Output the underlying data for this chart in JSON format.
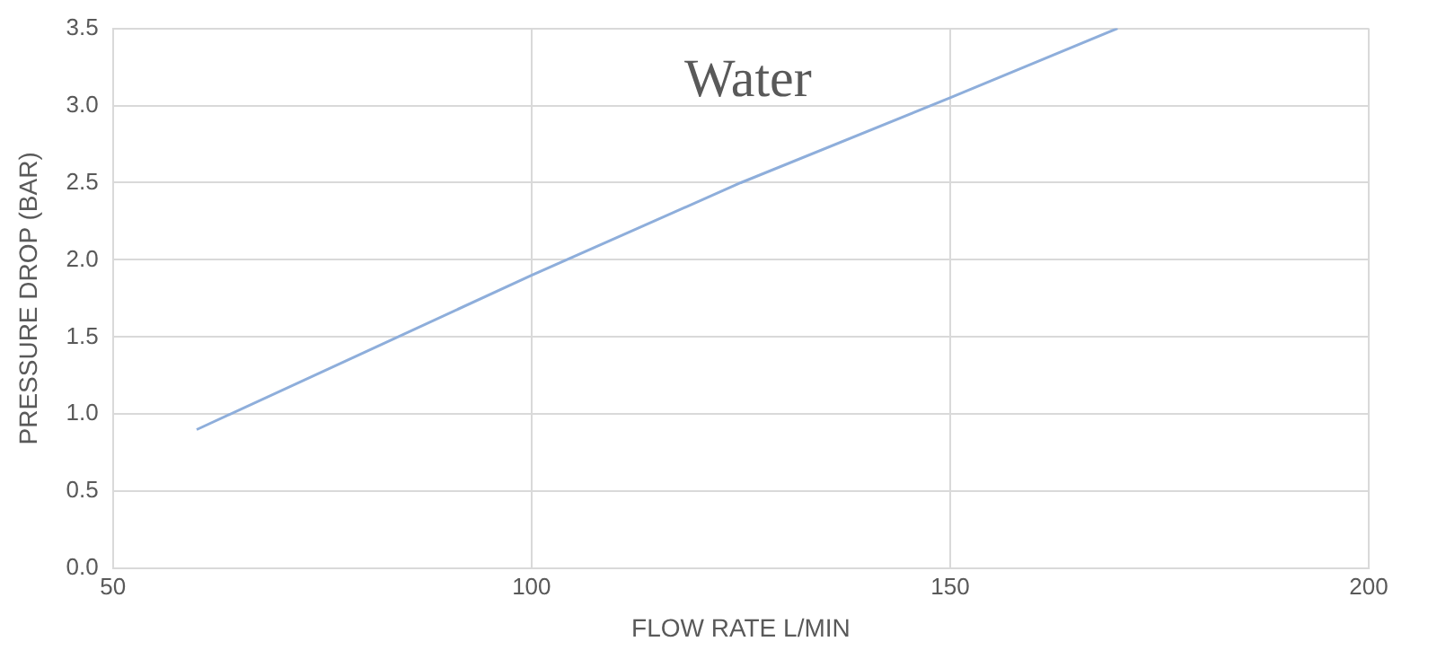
{
  "chart_data": {
    "type": "line",
    "title": "Water",
    "xlabel": "FLOW RATE L/MIN",
    "ylabel": "PRESSURE DROP (BAR)",
    "x": [
      60,
      80,
      100,
      125,
      150,
      170
    ],
    "series": [
      {
        "color": "#8eaedb",
        "values": [
          0.9,
          1.4,
          1.9,
          2.5,
          3.05,
          3.5
        ]
      }
    ],
    "xlim": [
      50,
      200
    ],
    "xticks": [
      50,
      100,
      150,
      200
    ],
    "ylim": [
      0,
      3.5
    ],
    "yticks": [
      {
        "value": 0,
        "label": "0.0"
      },
      {
        "value": 0.5,
        "label": "0.5"
      },
      {
        "value": 1,
        "label": "1.0"
      },
      {
        "value": 1.5,
        "label": "1.5"
      },
      {
        "value": 2,
        "label": "2.0"
      },
      {
        "value": 2.5,
        "label": "2.5"
      },
      {
        "value": 3,
        "label": "3.0"
      },
      {
        "value": 3.5,
        "label": "3.5"
      }
    ],
    "grid": true,
    "legend": false,
    "marker": "none",
    "line_style": "solid"
  }
}
